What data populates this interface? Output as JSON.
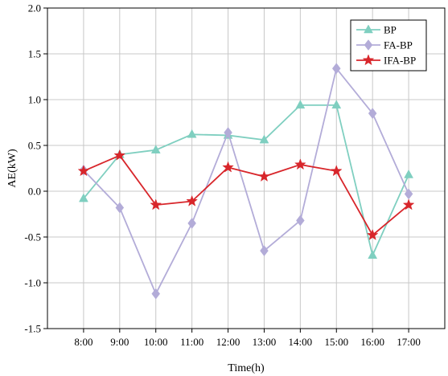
{
  "chart_data": {
    "type": "line",
    "title": "",
    "xlabel": "Time(h)",
    "ylabel": "AE(kW)",
    "categories": [
      "8:00",
      "9:00",
      "10:00",
      "11:00",
      "12:00",
      "13:00",
      "14:00",
      "15:00",
      "16:00",
      "17:00"
    ],
    "ylim": [
      -1.5,
      2.0
    ],
    "yticks": [
      "-1.5",
      "-1.0",
      "-0.5",
      "0.0",
      "0.5",
      "1.0",
      "1.5",
      "2.0"
    ],
    "grid": true,
    "legend_position": "top-right",
    "series": [
      {
        "name": "BP",
        "color": "#7fcfc0",
        "marker": "triangle",
        "values": [
          -0.08,
          0.4,
          0.45,
          0.62,
          0.61,
          0.56,
          0.94,
          0.94,
          -0.7,
          0.18
        ]
      },
      {
        "name": "FA-BP",
        "color": "#b3acd8",
        "marker": "diamond",
        "values": [
          0.23,
          -0.18,
          -1.12,
          -0.35,
          0.64,
          -0.65,
          -0.32,
          1.34,
          0.85,
          -0.03
        ]
      },
      {
        "name": "IFA-BP",
        "color": "#d8262b",
        "marker": "star",
        "values": [
          0.22,
          0.39,
          -0.15,
          -0.11,
          0.26,
          0.16,
          0.29,
          0.22,
          -0.48,
          -0.15
        ]
      }
    ]
  }
}
